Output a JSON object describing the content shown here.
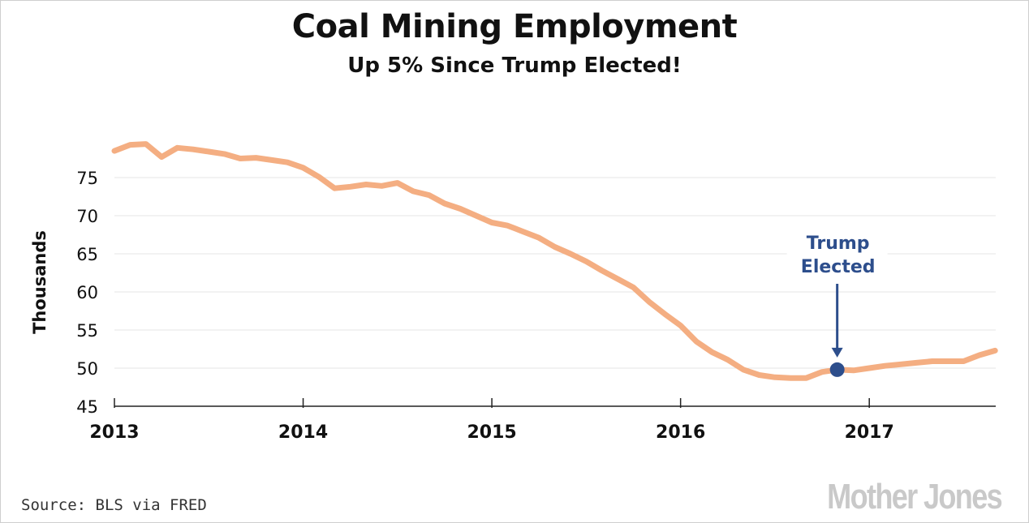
{
  "chart_data": {
    "type": "line",
    "title": "Coal Mining Employment",
    "subtitle": "Up 5% Since Trump Elected!",
    "ylabel": "Thousands",
    "xlabel": "",
    "x_start": 2013.0,
    "x_step": 0.08333,
    "xlim": [
      2013,
      2017.67
    ],
    "ylim": [
      45,
      80
    ],
    "yticks": [
      "45",
      "50",
      "55",
      "60",
      "65",
      "70",
      "75"
    ],
    "ytick_values": [
      45,
      50,
      55,
      60,
      65,
      70,
      75
    ],
    "xticks": [
      "2013",
      "2014",
      "2015",
      "2016",
      "2017"
    ],
    "xtick_values": [
      2013,
      2014,
      2015,
      2016,
      2017
    ],
    "series": [
      {
        "name": "Coal mining employment",
        "color": "#f4ae82",
        "values": [
          78.5,
          79.3,
          79.4,
          77.7,
          78.9,
          78.7,
          78.4,
          78.1,
          77.5,
          77.6,
          77.3,
          77.0,
          76.3,
          75.1,
          73.6,
          73.8,
          74.1,
          73.9,
          74.3,
          73.2,
          72.7,
          71.6,
          70.9,
          70.0,
          69.1,
          68.7,
          67.9,
          67.1,
          65.9,
          65.0,
          64.0,
          62.8,
          61.7,
          60.6,
          58.7,
          57.1,
          55.6,
          53.5,
          52.1,
          51.1,
          49.8,
          49.1,
          48.8,
          48.7,
          48.7,
          49.5,
          49.8,
          49.7,
          50.0,
          50.3,
          50.5,
          50.7,
          50.9,
          50.9,
          50.9,
          51.7,
          52.3
        ]
      }
    ],
    "annotation": {
      "text_line1": "Trump",
      "text_line2": "Elected",
      "x": 2016.83,
      "y": 49.8,
      "color": "#2d4e8c"
    },
    "grid": true
  },
  "footer": {
    "source": "Source: BLS via FRED",
    "logo": "Mother Jones"
  }
}
